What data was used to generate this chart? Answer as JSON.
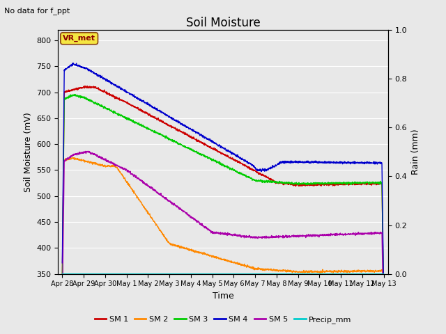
{
  "title": "Soil Moisture",
  "ylabel_left": "Soil Moisture (mV)",
  "ylabel_right": "Rain (mm)",
  "xlabel": "Time",
  "top_left_text": "No data for f_ppt",
  "vr_met_label": "VR_met",
  "ylim_left": [
    350,
    820
  ],
  "ylim_right": [
    0.0,
    1.0
  ],
  "yticks_left": [
    350,
    400,
    450,
    500,
    550,
    600,
    650,
    700,
    750,
    800
  ],
  "yticks_right": [
    0.0,
    0.2,
    0.4,
    0.6,
    0.8,
    1.0
  ],
  "xtick_labels": [
    "Apr 28",
    "Apr 29",
    "Apr 30",
    "May 1",
    "May 2",
    "May 3",
    "May 4",
    "May 5",
    "May 6",
    "May 7",
    "May 8",
    "May 9",
    "May 10",
    "May 11",
    "May 12",
    "May 13"
  ],
  "bg_color": "#e8e8e8",
  "line_colors": {
    "SM1": "#cc0000",
    "SM2": "#ff8800",
    "SM3": "#00cc00",
    "SM4": "#0000cc",
    "SM5": "#aa00aa",
    "Precip": "#00cccc"
  },
  "legend_labels": [
    "SM 1",
    "SM 2",
    "SM 3",
    "SM 4",
    "SM 5",
    "Precip_mm"
  ],
  "figsize": [
    6.4,
    4.8
  ],
  "dpi": 100
}
